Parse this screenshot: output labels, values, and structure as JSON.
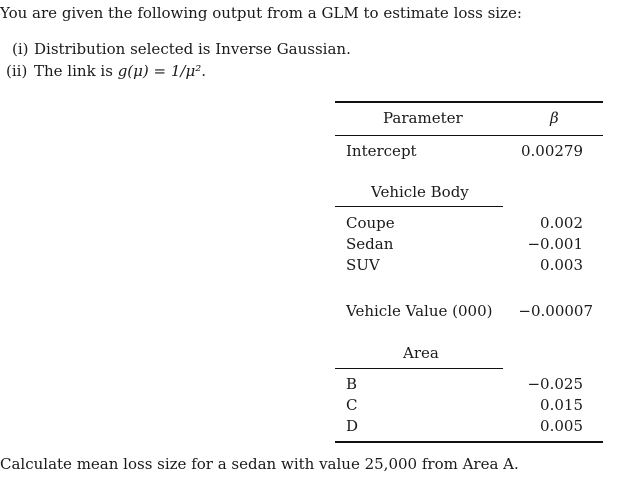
{
  "intro": "You are given the following output from a GLM to estimate loss size:",
  "items": [
    {
      "num": "(i)",
      "text": "Distribution selected is Inverse Gaussian."
    },
    {
      "num": "(ii)",
      "text_prefix": "The link is ",
      "math": "g(μ) = 1/μ²",
      "text_suffix": "."
    }
  ],
  "table": {
    "header": {
      "parameter": "Parameter",
      "beta": "β"
    },
    "intercept": {
      "label": "Intercept",
      "value": "0.00279"
    },
    "vehicle_body": {
      "heading": "Vehicle Body",
      "rows": [
        {
          "label": "Coupe",
          "value": "0.002"
        },
        {
          "label": "Sedan",
          "value": "−0.001"
        },
        {
          "label": "SUV",
          "value": "0.003"
        }
      ]
    },
    "vehicle_value": {
      "label": "Vehicle Value (000)",
      "value": "−0.00007"
    },
    "area": {
      "heading": "Area",
      "rows": [
        {
          "label": "B",
          "value": "−0.025"
        },
        {
          "label": "C",
          "value": "0.015"
        },
        {
          "label": "D",
          "value": "0.005"
        }
      ]
    }
  },
  "question": "Calculate mean loss size for a sedan with value 25,000 from Area A."
}
